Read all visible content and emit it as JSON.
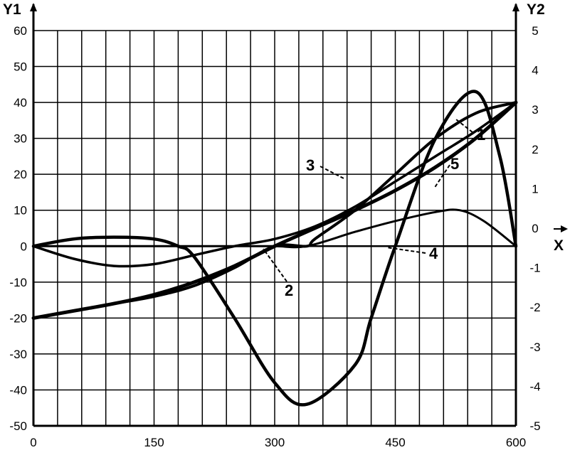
{
  "chart_data": {
    "type": "line",
    "title": "",
    "x_axis": {
      "label": "X",
      "range": [
        0,
        600
      ],
      "ticks": [
        0,
        150,
        300,
        450,
        600
      ],
      "tick_labels": [
        "0",
        "150",
        "300",
        "450",
        "600"
      ],
      "grid_step": 30
    },
    "y1_axis": {
      "label": "Y1",
      "range": [
        -50,
        60
      ],
      "ticks": [
        -50,
        -40,
        -30,
        -20,
        -10,
        0,
        10,
        20,
        30,
        40,
        50,
        60
      ],
      "tick_labels": [
        "-50",
        "-40",
        "-30",
        "-20",
        "-10",
        "0",
        "10",
        "20",
        "30",
        "40",
        "50",
        "60"
      ]
    },
    "y2_axis": {
      "label": "Y2",
      "range": [
        -5,
        5
      ],
      "ticks": [
        -5,
        -4,
        -3,
        -2,
        -1,
        0,
        1,
        2,
        3,
        4,
        5
      ],
      "tick_labels": [
        "-5",
        "-4",
        "-3",
        "-2",
        "-1",
        "0",
        "1",
        "2",
        "3",
        "4",
        "5"
      ]
    },
    "grid": true,
    "series": [
      {
        "name": "1",
        "axis": "y1",
        "color": "#000000",
        "x": [
          0,
          50,
          100,
          150,
          200,
          250,
          300,
          350,
          400,
          450,
          500,
          550,
          600
        ],
        "y": [
          -20,
          -18,
          -16,
          -13.5,
          -10,
          -5.5,
          0,
          5,
          10,
          15.5,
          22,
          30,
          40
        ]
      },
      {
        "name": "2",
        "axis": "y1",
        "color": "#000000",
        "x": [
          0,
          50,
          100,
          150,
          200,
          250,
          300,
          350,
          400,
          450,
          500,
          550,
          600
        ],
        "y": [
          0,
          -3.5,
          -5.5,
          -5,
          -2.5,
          0,
          2,
          5.5,
          11,
          18,
          25,
          32,
          40
        ]
      },
      {
        "name": "3",
        "axis": "y1",
        "color": "#000000",
        "x": [
          0,
          50,
          100,
          150,
          200,
          250,
          300,
          340,
          350,
          400,
          450,
          500,
          550,
          600
        ],
        "y": [
          -20,
          -18,
          -16,
          -14,
          -11,
          -6,
          0,
          0,
          2,
          10,
          20,
          30,
          37,
          40
        ]
      },
      {
        "name": "4",
        "axis": "y1",
        "color": "#000000",
        "x": [
          0,
          50,
          100,
          150,
          180,
          200,
          250,
          300,
          340,
          400,
          420,
          450,
          500,
          550,
          580,
          600
        ],
        "y": [
          0,
          2,
          2.5,
          2,
          0,
          -3,
          -20,
          -38,
          -44,
          -33,
          -20,
          0,
          30,
          43,
          25,
          0
        ]
      },
      {
        "name": "5",
        "axis": "y1",
        "color": "#000000",
        "x": [
          0,
          100,
          200,
          250,
          300,
          340,
          400,
          450,
          500,
          530,
          560,
          600
        ],
        "y": [
          0,
          0,
          0,
          0,
          0,
          0,
          4,
          7,
          9.5,
          10,
          7,
          0
        ]
      }
    ]
  }
}
